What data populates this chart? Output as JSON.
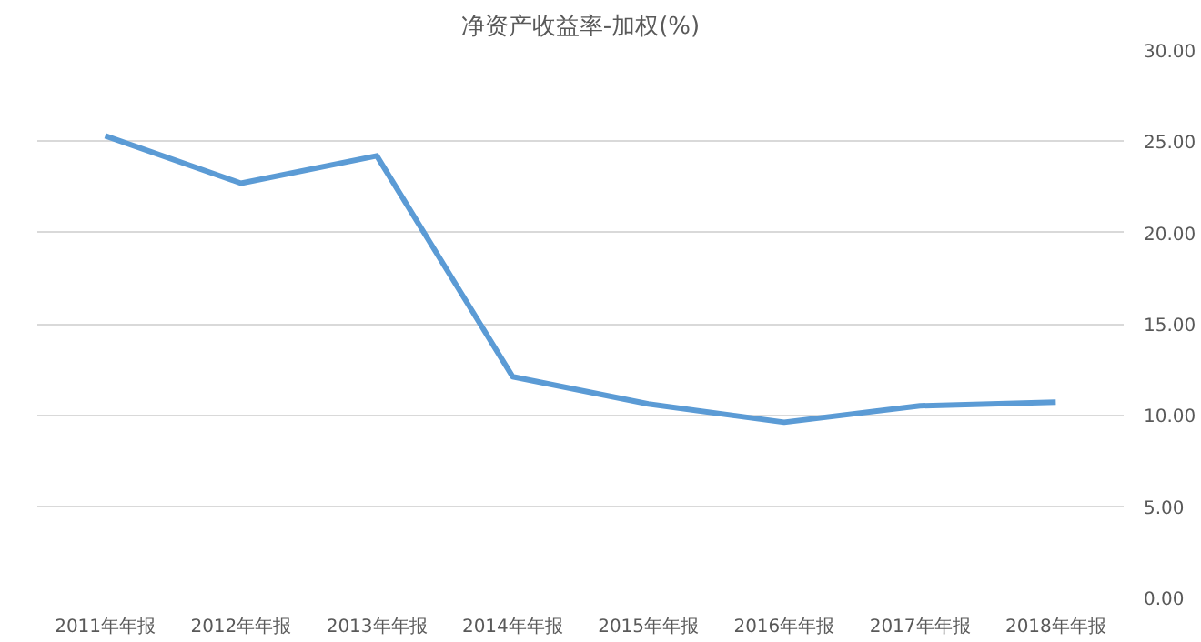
{
  "chart_data": {
    "type": "line",
    "title": "净资产收益率-加权(%)",
    "categories": [
      "2011年年报",
      "2012年年报",
      "2013年年报",
      "2014年年报",
      "2015年年报",
      "2016年年报",
      "2017年年报",
      "2018年年报"
    ],
    "series": [
      {
        "color": "#5b9bd5",
        "values": [
          25.3,
          22.7,
          24.2,
          12.1,
          10.6,
          9.6,
          10.5,
          10.7
        ]
      }
    ],
    "ylim": [
      0,
      30
    ],
    "yticks": [
      {
        "value": 0,
        "label": "0.00"
      },
      {
        "value": 5,
        "label": "5.00"
      },
      {
        "value": 10,
        "label": "10.00"
      },
      {
        "value": 15,
        "label": "15.00"
      },
      {
        "value": 20,
        "label": "20.00"
      },
      {
        "value": 25,
        "label": "25.00"
      },
      {
        "value": 30,
        "label": "30.00"
      }
    ],
    "grid": "y",
    "marker": "none",
    "line_style": "solid"
  }
}
